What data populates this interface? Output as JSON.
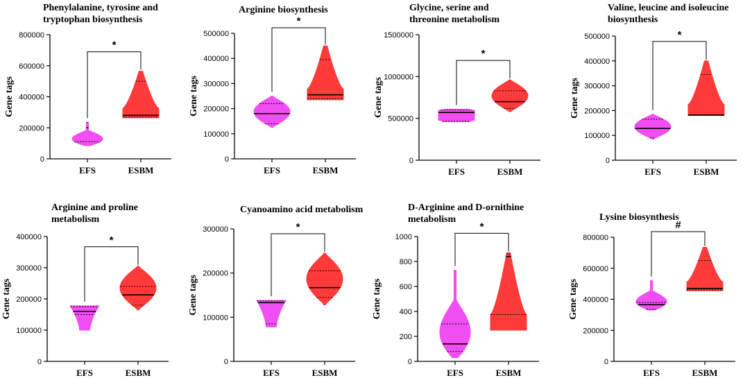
{
  "figure": {
    "y_axis_label": "Gene tags"
  },
  "colors": {
    "EFS": "#f04ef2",
    "ESBM": "#ff3a3a",
    "axis": "#000000"
  },
  "chart_data": [
    {
      "type": "violin",
      "title_lines": [
        "Phenylalanine, tyrosine and",
        "tryptophan biosynthesis"
      ],
      "ylabel": "Gene tags",
      "ylim": [
        0,
        800000
      ],
      "yticks": [
        0,
        200000,
        400000,
        600000,
        800000
      ],
      "ytick_labels": [
        "0",
        "200000",
        "400000",
        "600000",
        "800000"
      ],
      "categories": [
        "EFS",
        "ESBM"
      ],
      "significance": "*",
      "series": [
        {
          "name": "EFS",
          "min": 85000,
          "max": 235000,
          "median": 200000,
          "q1": 110000,
          "q3": 235000,
          "shape": "lower"
        },
        {
          "name": "ESBM",
          "min": 265000,
          "max": 565000,
          "median": 280000,
          "q1": 268000,
          "q3": 500000,
          "shape": "funnel"
        }
      ]
    },
    {
      "type": "violin",
      "title_lines": [
        "Arginine biosynthesis"
      ],
      "ylabel": "Gene tags",
      "ylim": [
        0,
        500000
      ],
      "yticks": [
        0,
        100000,
        200000,
        300000,
        400000,
        500000
      ],
      "ytick_labels": [
        "0",
        "100000",
        "200000",
        "300000",
        "400000",
        "500000"
      ],
      "categories": [
        "EFS",
        "ESBM"
      ],
      "significance": "*",
      "series": [
        {
          "name": "EFS",
          "min": 125000,
          "max": 250000,
          "median": 180000,
          "q1": 140000,
          "q3": 220000,
          "shape": "normal"
        },
        {
          "name": "ESBM",
          "min": 235000,
          "max": 450000,
          "median": 255000,
          "q1": 240000,
          "q3": 395000,
          "shape": "funnel"
        }
      ]
    },
    {
      "type": "violin",
      "title_lines": [
        "Glycine, serine and",
        "threonine metabolism"
      ],
      "ylabel": "Gene tags",
      "ylim": [
        0,
        1500000
      ],
      "yticks": [
        0,
        500000,
        1000000,
        1500000
      ],
      "ytick_labels": [
        "0",
        "500000",
        "1000000",
        "1500000"
      ],
      "categories": [
        "EFS",
        "ESBM"
      ],
      "significance": "*",
      "series": [
        {
          "name": "EFS",
          "min": 460000,
          "max": 610000,
          "median": 570000,
          "q1": 465000,
          "q3": 600000,
          "shape": "block"
        },
        {
          "name": "ESBM",
          "min": 580000,
          "max": 960000,
          "median": 700000,
          "q1": 620000,
          "q3": 830000,
          "shape": "normal"
        }
      ]
    },
    {
      "type": "violin",
      "title_lines": [
        "Valine, leucine and isoleucine",
        "biosynthesis"
      ],
      "ylabel": "Gene tags",
      "ylim": [
        0,
        500000
      ],
      "yticks": [
        0,
        100000,
        200000,
        300000,
        400000,
        500000
      ],
      "ytick_labels": [
        "0",
        "100000",
        "200000",
        "300000",
        "400000",
        "500000"
      ],
      "categories": [
        "EFS",
        "ESBM"
      ],
      "significance": "*",
      "series": [
        {
          "name": "EFS",
          "min": 85000,
          "max": 185000,
          "median": 128000,
          "q1": 90000,
          "q3": 165000,
          "shape": "normal"
        },
        {
          "name": "ESBM",
          "min": 180000,
          "max": 400000,
          "median": 182000,
          "q1": 181000,
          "q3": 345000,
          "shape": "funnel"
        }
      ]
    },
    {
      "type": "violin",
      "title_lines": [
        "Arginine and proline",
        "metabolism"
      ],
      "ylabel": "Gene tags",
      "ylim": [
        0,
        400000
      ],
      "yticks": [
        0,
        100000,
        200000,
        300000,
        400000
      ],
      "ytick_labels": [
        "0",
        "100000",
        "200000",
        "300000",
        "400000"
      ],
      "categories": [
        "EFS",
        "ESBM"
      ],
      "significance": "*",
      "series": [
        {
          "name": "EFS",
          "min": 100000,
          "max": 178000,
          "median": 160000,
          "q1": 150000,
          "q3": 175000,
          "shape": "upper"
        },
        {
          "name": "ESBM",
          "min": 165000,
          "max": 305000,
          "median": 213000,
          "q1": 180000,
          "q3": 240000,
          "shape": "normal"
        }
      ]
    },
    {
      "type": "violin",
      "title_lines": [
        "Cyanoamino acid metabolism"
      ],
      "ylabel": "Gene tags",
      "ylim": [
        0,
        300000
      ],
      "yticks": [
        0,
        100000,
        200000,
        300000
      ],
      "ytick_labels": [
        "0",
        "100000",
        "200000",
        "300000"
      ],
      "categories": [
        "EFS",
        "ESBM"
      ],
      "significance": "*",
      "series": [
        {
          "name": "EFS",
          "min": 78000,
          "max": 138000,
          "median": 133000,
          "q1": 85000,
          "q3": 137000,
          "shape": "upper"
        },
        {
          "name": "ESBM",
          "min": 128000,
          "max": 245000,
          "median": 167000,
          "q1": 145000,
          "q3": 205000,
          "shape": "normal"
        }
      ]
    },
    {
      "type": "violin",
      "title_lines": [
        "D-Arginine and D-ornithine",
        "metabolism"
      ],
      "ylabel": "Gene tags",
      "ylim": [
        0,
        1000
      ],
      "yticks": [
        0,
        200,
        400,
        600,
        800,
        1000
      ],
      "ytick_labels": [
        "0",
        "200",
        "400",
        "600",
        "800",
        "1000"
      ],
      "categories": [
        "EFS",
        "ESBM"
      ],
      "significance": "*",
      "series": [
        {
          "name": "EFS",
          "min": 30,
          "max": 730,
          "median": 140,
          "q1": 80,
          "q3": 300,
          "shape": "lower"
        },
        {
          "name": "ESBM",
          "min": 250,
          "max": 870,
          "median": 840,
          "q1": 375,
          "q3": 860,
          "shape": "funnel"
        }
      ]
    },
    {
      "type": "violin",
      "title_lines": [
        "Lysine biosynthesis"
      ],
      "ylabel": "Gene tags",
      "ylim": [
        0,
        800000
      ],
      "yticks": [
        0,
        200000,
        400000,
        600000,
        800000
      ],
      "ytick_labels": [
        "0",
        "200000",
        "400000",
        "600000",
        "800000"
      ],
      "categories": [
        "EFS",
        "ESBM"
      ],
      "significance": "#",
      "series": [
        {
          "name": "EFS",
          "min": 330000,
          "max": 520000,
          "median": 365000,
          "q1": 335000,
          "q3": 380000,
          "shape": "lower"
        },
        {
          "name": "ESBM",
          "min": 455000,
          "max": 735000,
          "median": 470000,
          "q1": 460000,
          "q3": 650000,
          "shape": "funnel"
        }
      ]
    }
  ]
}
